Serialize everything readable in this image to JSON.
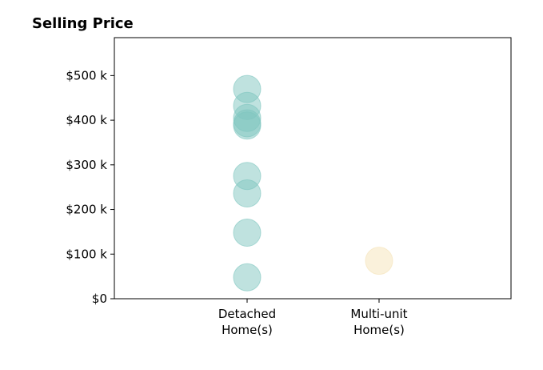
{
  "chart_data": {
    "type": "scatter",
    "title": "Selling Price",
    "xlabel": "",
    "ylabel": "",
    "categories": [
      {
        "label_lines": [
          "Detached",
          "Home(s)"
        ]
      },
      {
        "label_lines": [
          "Multi-unit",
          "Home(s)"
        ]
      }
    ],
    "ylim": [
      0,
      585000
    ],
    "yticks": [
      {
        "value": 0,
        "label": "$0"
      },
      {
        "value": 100000,
        "label": "$100 k"
      },
      {
        "value": 200000,
        "label": "$200 k"
      },
      {
        "value": 300000,
        "label": "$300 k"
      },
      {
        "value": 400000,
        "label": "$400 k"
      },
      {
        "value": 500000,
        "label": "$500 k"
      }
    ],
    "grid": false,
    "legend": "none",
    "series": [
      {
        "category": 0,
        "color": "#7fc6bf",
        "values": [
          470000,
          432000,
          405000,
          393000,
          388000,
          275000,
          236000,
          148000,
          48000
        ]
      },
      {
        "category": 1,
        "color": "#f5e3b8",
        "values": [
          85000
        ]
      }
    ]
  }
}
